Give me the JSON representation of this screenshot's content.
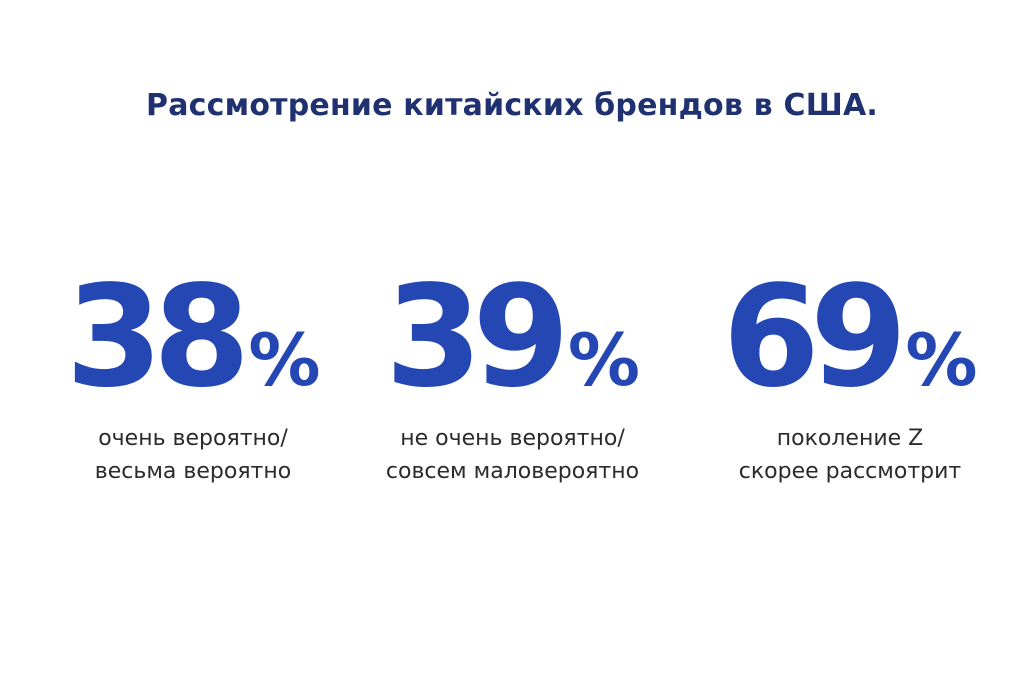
{
  "title": "Рассмотрение китайских брендов в США.",
  "stats": [
    {
      "number": "38",
      "unit": "%",
      "caption_line1": "очень вероятно/",
      "caption_line2": "весьма вероятно"
    },
    {
      "number": "39",
      "unit": "%",
      "caption_line1": "не очень вероятно/",
      "caption_line2": "совсем маловероятно"
    },
    {
      "number": "69",
      "unit": "%",
      "caption_line1": "поколение Z",
      "caption_line2": "скорее рассмотрит"
    }
  ],
  "colors": {
    "title": "#1f3170",
    "accent": "#2447b3",
    "caption": "#2b2b2b",
    "background": "#ffffff"
  }
}
